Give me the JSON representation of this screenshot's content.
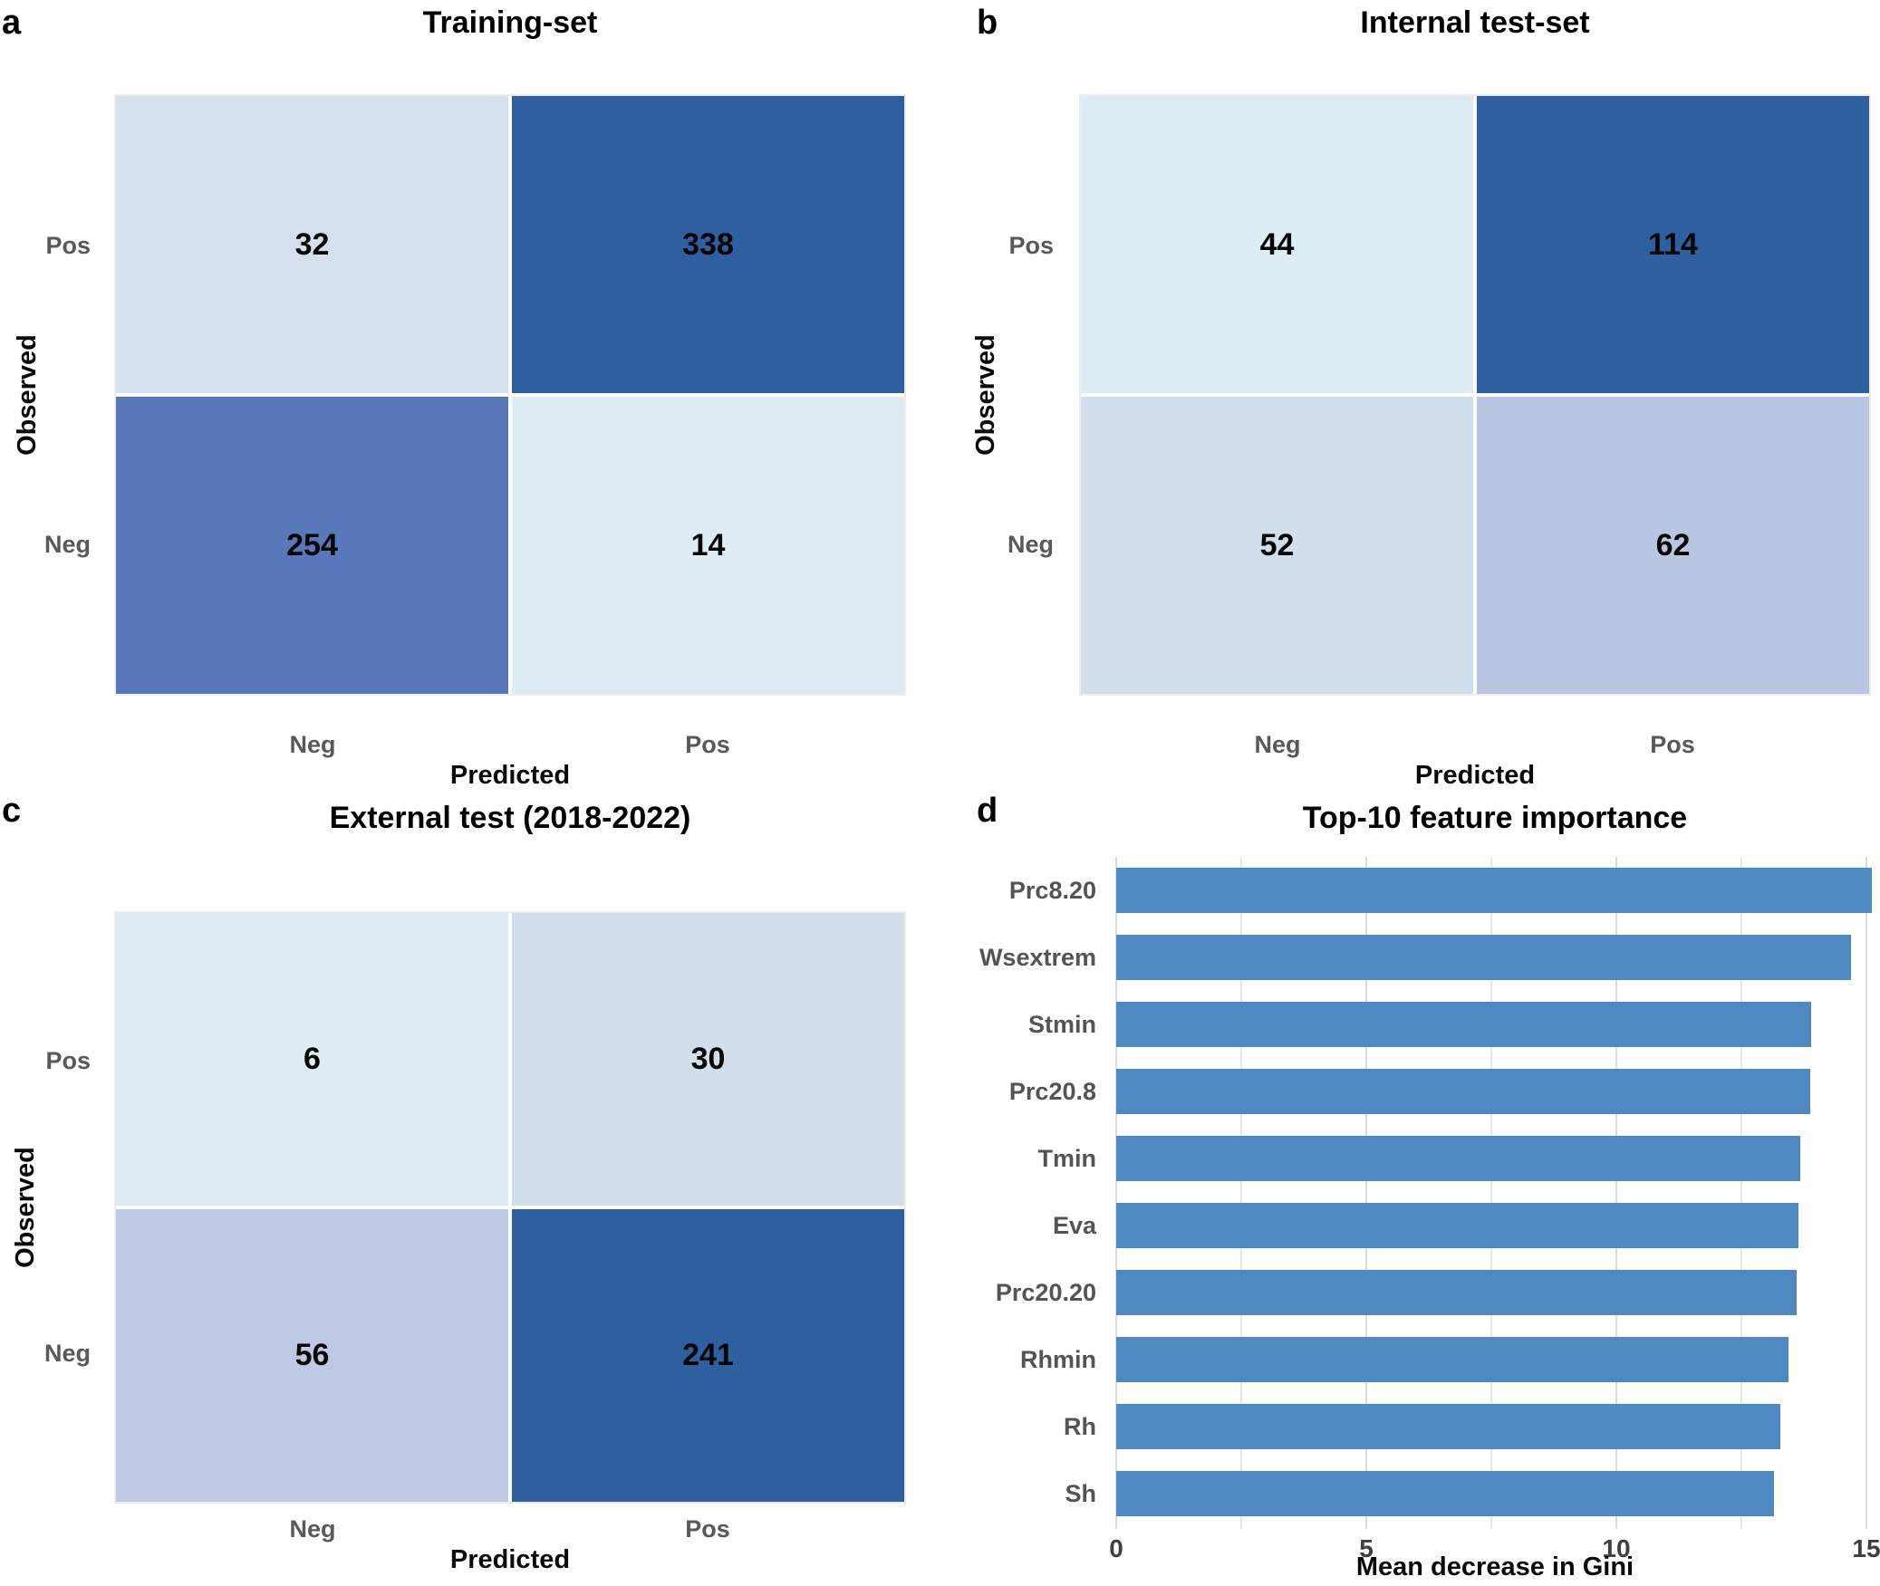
{
  "colors": {
    "dark_blue": "#2E5F9E",
    "medium_blue": "#5878BA",
    "bar_blue": "#4E8AC1",
    "label_gray": "#595959",
    "gridline_gray": "#DCDCDC"
  },
  "panels": {
    "a": {
      "letter": "a",
      "title": "Training-set",
      "y_axis_title": "Observed",
      "x_axis_title": "Predicted",
      "row_labels": [
        "Pos",
        "Neg"
      ],
      "col_labels": [
        "Neg",
        "Pos"
      ],
      "cells": [
        {
          "value": "32",
          "color": "#D5E0EC"
        },
        {
          "value": "338",
          "color": "#2E5F9E"
        },
        {
          "value": "254",
          "color": "#5878BA"
        },
        {
          "value": "14",
          "color": "#DEEDF3"
        }
      ]
    },
    "b": {
      "letter": "b",
      "title": "Internal test-set",
      "y_axis_title": "Observed",
      "x_axis_title": "Predicted",
      "row_labels": [
        "Pos",
        "Neg"
      ],
      "col_labels": [
        "Neg",
        "Pos"
      ],
      "cells": [
        {
          "value": "44",
          "color": "#DCEDF3"
        },
        {
          "value": "114",
          "color": "#2E5F9E"
        },
        {
          "value": "52",
          "color": "#D1DEEB"
        },
        {
          "value": "62",
          "color": "#B9C6E1"
        }
      ]
    },
    "c": {
      "letter": "c",
      "title": "External test (2018-2022)",
      "y_axis_title": "Observed",
      "x_axis_title": "Predicted",
      "row_labels": [
        "Pos",
        "Neg"
      ],
      "col_labels": [
        "Neg",
        "Pos"
      ],
      "cells": [
        {
          "value": "6",
          "color": "#DDEDF3"
        },
        {
          "value": "30",
          "color": "#D2DEEA"
        },
        {
          "value": "56",
          "color": "#BECAE4"
        },
        {
          "value": "241",
          "color": "#2E5F9E"
        }
      ]
    },
    "d": {
      "letter": "d",
      "title": "Top-10 feature importance",
      "x_axis_title": "Mean decrease in Gini"
    }
  },
  "chart_data": [
    {
      "type": "heatmap",
      "panel": "a",
      "title": "Training-set",
      "rows": [
        "Pos",
        "Neg"
      ],
      "cols": [
        "Neg",
        "Pos"
      ],
      "values": [
        [
          32,
          338
        ],
        [
          254,
          14
        ]
      ],
      "xlabel": "Predicted",
      "ylabel": "Observed"
    },
    {
      "type": "heatmap",
      "panel": "b",
      "title": "Internal test-set",
      "rows": [
        "Pos",
        "Neg"
      ],
      "cols": [
        "Neg",
        "Pos"
      ],
      "values": [
        [
          44,
          114
        ],
        [
          52,
          62
        ]
      ],
      "xlabel": "Predicted",
      "ylabel": "Observed"
    },
    {
      "type": "heatmap",
      "panel": "c",
      "title": "External test (2018-2022)",
      "rows": [
        "Pos",
        "Neg"
      ],
      "cols": [
        "Neg",
        "Pos"
      ],
      "values": [
        [
          6,
          30
        ],
        [
          56,
          241
        ]
      ],
      "xlabel": "Predicted",
      "ylabel": "Observed"
    },
    {
      "type": "bar",
      "panel": "d",
      "orientation": "horizontal",
      "title": "Top-10 feature importance",
      "categories": [
        "Prc8.20",
        "Wsextrem",
        "Stmin",
        "Prc20.8",
        "Tmin",
        "Eva",
        "Prc20.20",
        "Rhmin",
        "Rh",
        "Sh"
      ],
      "values": [
        15.1,
        14.7,
        13.9,
        13.87,
        13.67,
        13.64,
        13.6,
        13.45,
        13.27,
        13.15
      ],
      "xlabel": "Mean decrease in Gini",
      "xlim": [
        0,
        15.2
      ],
      "x_ticks": [
        0,
        5,
        10,
        15
      ],
      "x_tick_labels": [
        "0",
        "5",
        "10",
        "15"
      ],
      "gridlines": [
        0,
        2.5,
        5,
        7.5,
        10,
        12.5,
        15
      ],
      "bar_color": "#4E8AC1",
      "grid": true,
      "legend": false
    }
  ]
}
